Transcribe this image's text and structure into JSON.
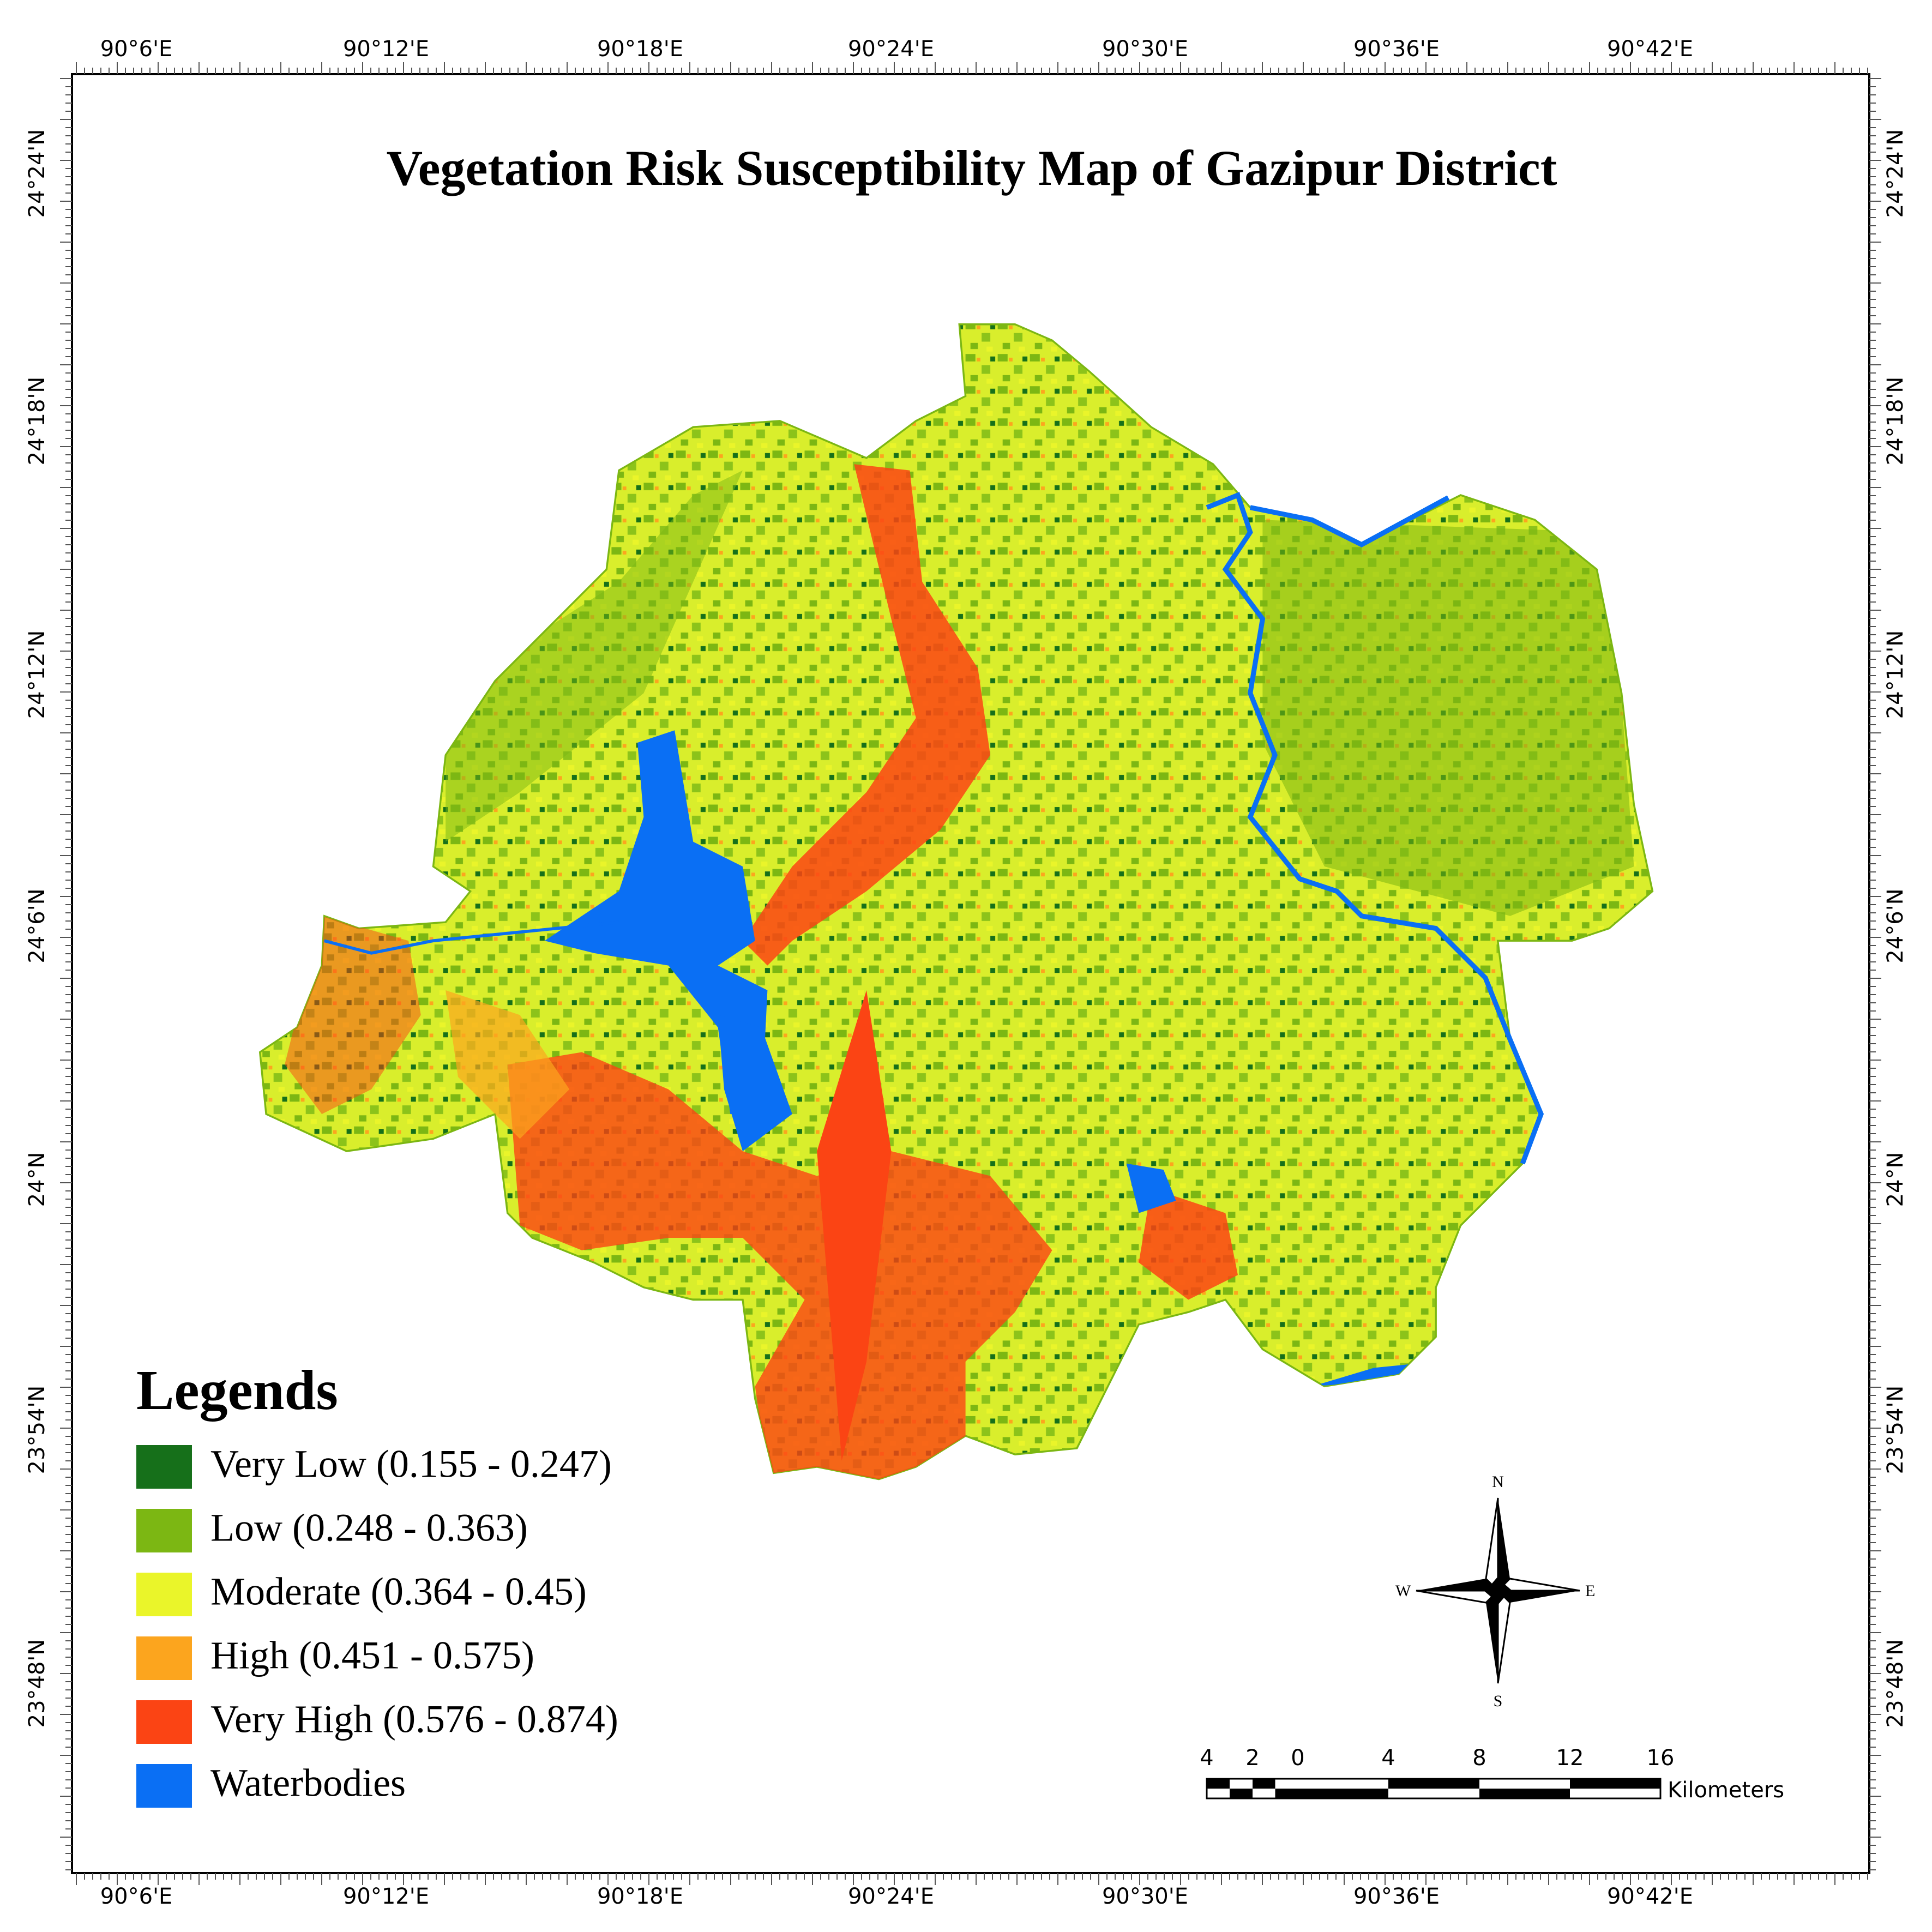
{
  "title": "Vegetation Risk Susceptibility Map of Gazipur District",
  "longitude_labels": [
    "90°6'E",
    "90°12'E",
    "90°18'E",
    "90°24'E",
    "90°30'E",
    "90°36'E",
    "90°42'E"
  ],
  "latitude_labels": [
    "24°24'N",
    "24°18'N",
    "24°12'N",
    "24°6'N",
    "24°N",
    "23°54'N",
    "23°48'N"
  ],
  "legend": {
    "title": "Legends",
    "items": [
      {
        "label": "Very Low (0.155 - 0.247)",
        "color": "#16701a"
      },
      {
        "label": "Low (0.248 - 0.363)",
        "color": "#7cb713"
      },
      {
        "label": "Moderate (0.364 - 0.45)",
        "color": "#eaf52a"
      },
      {
        "label": "High (0.451 - 0.575)",
        "color": "#fca51e"
      },
      {
        "label": "Very High (0.576 - 0.874)",
        "color": "#fb4414"
      },
      {
        "label": "Waterbodies",
        "color": "#0a6ff4"
      }
    ]
  },
  "compass": {
    "north": "N",
    "south": "S",
    "east": "E",
    "west": "W"
  },
  "scale_bar": {
    "labels": [
      "4",
      "2",
      "0",
      "4",
      "8",
      "12",
      "16"
    ],
    "unit": "Kilometers"
  }
}
